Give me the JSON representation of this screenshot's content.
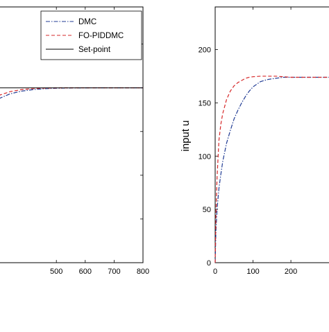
{
  "chart_data": [
    {
      "type": "line",
      "xlabel": "",
      "ylabel": "",
      "xlim": [
        300,
        800
      ],
      "ylim": [
        0,
        234
      ],
      "xticks": [
        500,
        600,
        700,
        800
      ],
      "legend": {
        "placement": "top-right",
        "entries": [
          {
            "label": "DMC",
            "color": "#1f3a93",
            "style": "dash-dot"
          },
          {
            "label": "FO-PIDDMC",
            "color": "#d62728",
            "style": "dashed"
          },
          {
            "label": "Set-point",
            "color": "#000000",
            "style": "solid"
          }
        ]
      },
      "series": [
        {
          "name": "DMC",
          "color": "#1f3a93",
          "style": "dash-dot",
          "x": [
            300,
            340,
            380,
            420,
            460,
            500,
            540,
            580,
            620,
            700,
            800
          ],
          "y": [
            150,
            154.5,
            157.0,
            158.4,
            159.2,
            159.6,
            159.8,
            159.9,
            160,
            160,
            160
          ]
        },
        {
          "name": "FO-PIDDMC",
          "color": "#d62728",
          "style": "dashed",
          "x": [
            300,
            340,
            380,
            420,
            460,
            500,
            540,
            580,
            620,
            700,
            800
          ],
          "y": [
            153,
            156.5,
            158.4,
            159.3,
            159.7,
            159.9,
            160,
            160,
            160,
            160,
            160
          ]
        },
        {
          "name": "Set-point",
          "color": "#000000",
          "style": "solid",
          "x": [
            300,
            800
          ],
          "y": [
            160,
            160
          ]
        }
      ]
    },
    {
      "type": "line",
      "xlabel": "",
      "ylabel": "input  u",
      "xlim": [
        0,
        330
      ],
      "ylim": [
        0,
        240
      ],
      "xticks": [
        0,
        100,
        200
      ],
      "yticks": [
        0,
        50,
        100,
        150,
        200
      ],
      "series": [
        {
          "name": "DMC",
          "color": "#1f3a93",
          "style": "dash-dot",
          "x": [
            0,
            2,
            5,
            10,
            15,
            20,
            30,
            40,
            50,
            60,
            70,
            80,
            90,
            100,
            120,
            140,
            160,
            180,
            200,
            250,
            300,
            330
          ],
          "y": [
            0,
            30,
            50,
            70,
            83,
            95,
            112,
            124,
            135,
            143,
            150,
            156,
            161,
            165,
            170,
            172,
            173,
            174,
            174,
            174,
            174,
            174
          ]
        },
        {
          "name": "FO-PIDDMC",
          "color": "#d62728",
          "style": "dashed",
          "x": [
            0,
            2,
            5,
            10,
            15,
            20,
            30,
            40,
            50,
            60,
            70,
            80,
            90,
            100,
            120,
            140,
            160,
            180,
            200,
            250,
            300,
            330
          ],
          "y": [
            0,
            45,
            80,
            115,
            130,
            140,
            153,
            161,
            166,
            169,
            171,
            173,
            174,
            174.5,
            175,
            175,
            175,
            174.5,
            174,
            174,
            174,
            174
          ]
        }
      ]
    }
  ]
}
